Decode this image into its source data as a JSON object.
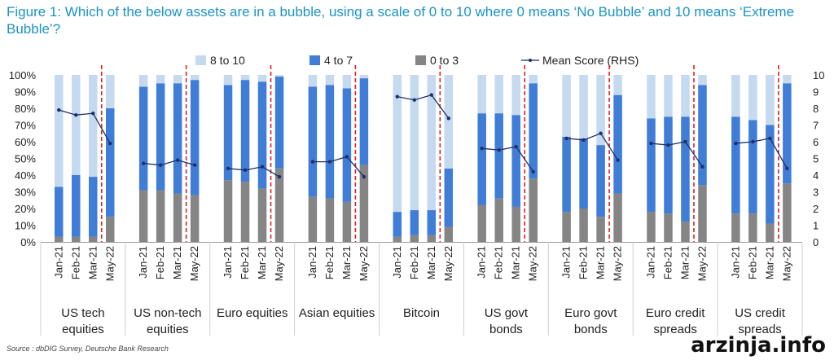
{
  "figure": {
    "title": "Figure 1: Which of the below assets are in a bubble, using a scale of 0 to 10 where 0 means ‘No Bubble’ and 10 means ‘Extreme Bubble’?",
    "source": "Source : dbDIG Survey, Deutsche Bank Research",
    "watermark": "arzinja.info"
  },
  "colors": {
    "s8to10": "#c5d9ef",
    "s4to7": "#3f7dd6",
    "s0to3": "#858585",
    "mean_line": "#1f2f6b",
    "divider": "#e02020",
    "title": "#1a93c7"
  },
  "chart_data": {
    "type": "bar",
    "stacked": true,
    "legend_position": "top",
    "grid": false,
    "left_axis": {
      "ticks": [
        "0%",
        "10%",
        "20%",
        "30%",
        "40%",
        "50%",
        "60%",
        "70%",
        "80%",
        "90%",
        "100%"
      ],
      "range": [
        0,
        100
      ]
    },
    "right_axis": {
      "ticks": [
        "0",
        "1",
        "2",
        "3",
        "4",
        "5",
        "6",
        "7",
        "8",
        "9",
        "10"
      ],
      "range": [
        0,
        10
      ]
    },
    "legend": [
      {
        "key": "s8to10",
        "label": "8 to 10"
      },
      {
        "key": "s4to7",
        "label": "4 to 7"
      },
      {
        "key": "s0to3",
        "label": "0 to 3"
      },
      {
        "key": "mean",
        "label": "Mean Score (RHS)"
      }
    ],
    "periods": [
      "Jan-21",
      "Feb-21",
      "Mar-21",
      "May-22"
    ],
    "groups": [
      {
        "name": "US tech equities",
        "label_lines": [
          "US tech",
          "equities"
        ],
        "s0to3": [
          3,
          3,
          3,
          15
        ],
        "s4to7": [
          30,
          37,
          36,
          65
        ],
        "mean": [
          7.9,
          7.6,
          7.7,
          5.9
        ]
      },
      {
        "name": "US non-tech equities",
        "label_lines": [
          "US non-tech",
          "equities"
        ],
        "s0to3": [
          31,
          31,
          29,
          28
        ],
        "s4to7": [
          62,
          64,
          66,
          69
        ],
        "mean": [
          4.7,
          4.6,
          4.9,
          4.6
        ]
      },
      {
        "name": "Euro equities",
        "label_lines": [
          "Euro equities"
        ],
        "s0to3": [
          37,
          36,
          32,
          44
        ],
        "s4to7": [
          57,
          61,
          64,
          55
        ],
        "mean": [
          4.4,
          4.3,
          4.5,
          3.9
        ]
      },
      {
        "name": "Asian equities",
        "label_lines": [
          "Asian equities"
        ],
        "s0to3": [
          27,
          26,
          24,
          46
        ],
        "s4to7": [
          66,
          68,
          68,
          52
        ],
        "mean": [
          4.8,
          4.8,
          5.1,
          3.9
        ]
      },
      {
        "name": "Bitcoin",
        "label_lines": [
          "Bitcoin"
        ],
        "s0to3": [
          3,
          4,
          4,
          9
        ],
        "s4to7": [
          15,
          15,
          15,
          35
        ],
        "mean": [
          8.7,
          8.5,
          8.8,
          7.4
        ]
      },
      {
        "name": "US govt bonds",
        "label_lines": [
          "US govt",
          "bonds"
        ],
        "s0to3": [
          22,
          26,
          21,
          38
        ],
        "s4to7": [
          55,
          51,
          55,
          57
        ],
        "mean": [
          5.6,
          5.5,
          5.7,
          4.2
        ]
      },
      {
        "name": "Euro govt bonds",
        "label_lines": [
          "Euro govt",
          "bonds"
        ],
        "s0to3": [
          18,
          20,
          15,
          29
        ],
        "s4to7": [
          45,
          42,
          43,
          59
        ],
        "mean": [
          6.2,
          6.1,
          6.5,
          4.9
        ]
      },
      {
        "name": "Euro credit spreads",
        "label_lines": [
          "Euro credit",
          "spreads"
        ],
        "s0to3": [
          18,
          17,
          12,
          34
        ],
        "s4to7": [
          56,
          58,
          63,
          60
        ],
        "mean": [
          5.9,
          5.8,
          6.0,
          4.5
        ]
      },
      {
        "name": "US credit spreads",
        "label_lines": [
          "US credit",
          "spreads"
        ],
        "s0to3": [
          17,
          17,
          11,
          35
        ],
        "s4to7": [
          58,
          56,
          59,
          60
        ],
        "mean": [
          5.9,
          6.0,
          6.2,
          4.4
        ]
      }
    ]
  }
}
